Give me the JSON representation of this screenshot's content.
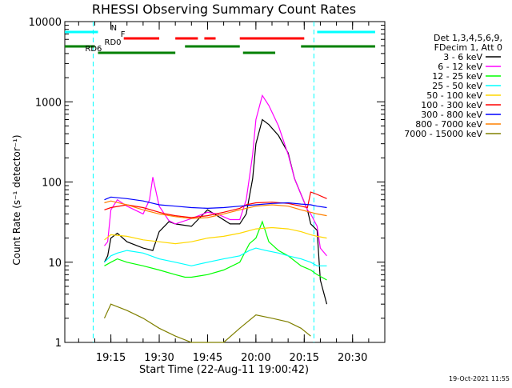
{
  "chart_data": {
    "type": "line",
    "title": "RHESSI Observing Summary Count Rates",
    "xlabel": "Start Time (22-Aug-11 19:00:42)",
    "ylabel": "Count Rate (s⁻¹ detector⁻¹)",
    "yscale": "log",
    "ylim": [
      1,
      10000
    ],
    "xlim": [
      "19:00:42",
      "20:40:00"
    ],
    "x_ticks": [
      "19:15",
      "19:30",
      "19:45",
      "20:00",
      "20:15",
      "20:30"
    ],
    "y_ticks": [
      "1",
      "10",
      "100",
      "1000",
      "10000"
    ],
    "grid": false,
    "legend_position": "right",
    "legend_header": [
      "Det 1,3,4,5,6,9,",
      "FDecim 1, Att 0"
    ],
    "timestamp": "19-Oct-2021 11:55",
    "flags": [
      {
        "label": "N",
        "color": "#00ffff",
        "intervals": [
          [
            "19:00:42",
            "19:11:00"
          ],
          [
            "20:19:00",
            "20:37:00"
          ]
        ]
      },
      {
        "label": "F",
        "color": "#ff0000",
        "intervals": [
          [
            "19:19:00",
            "19:30:00"
          ],
          [
            "19:35:00",
            "19:42:00"
          ],
          [
            "19:44:00",
            "19:47:30"
          ],
          [
            "19:55:00",
            "20:15:00"
          ]
        ]
      },
      {
        "label": "RD0",
        "color": "#008000",
        "intervals": [
          [
            "19:00:42",
            "19:10:00"
          ],
          [
            "19:38:00",
            "19:55:00"
          ],
          [
            "20:14:00",
            "20:37:00"
          ]
        ]
      },
      {
        "label": "RD6",
        "color": "#008000",
        "intervals": [
          [
            "19:11:00",
            "19:35:00"
          ],
          [
            "19:56:00",
            "20:06:00"
          ]
        ]
      }
    ],
    "night_boundaries": [
      "19:09:30",
      "20:18:00"
    ],
    "series": [
      {
        "name": "3 - 6 keV",
        "color": "#000000",
        "x": [
          "19:13",
          "19:14",
          "19:15",
          "19:17",
          "19:20",
          "19:25",
          "19:28",
          "19:30",
          "19:33",
          "19:35",
          "19:40",
          "19:45",
          "19:48",
          "19:52",
          "19:55",
          "19:57",
          "19:59",
          "20:00",
          "20:02",
          "20:04",
          "20:07",
          "20:10",
          "20:12",
          "20:14",
          "20:16",
          "20:17",
          "20:19",
          "20:20",
          "20:22"
        ],
        "y": [
          10,
          12,
          20,
          23,
          18,
          15,
          14,
          24,
          32,
          30,
          28,
          45,
          38,
          30,
          30,
          40,
          110,
          300,
          600,
          520,
          380,
          230,
          110,
          70,
          45,
          30,
          25,
          6,
          3
        ]
      },
      {
        "name": "6 - 12 keV",
        "color": "#ff00ff",
        "x": [
          "19:13",
          "19:14",
          "19:15",
          "19:17",
          "19:20",
          "19:25",
          "19:27",
          "19:28",
          "19:30",
          "19:33",
          "19:35",
          "19:40",
          "19:45",
          "19:48",
          "19:52",
          "19:55",
          "19:57",
          "19:59",
          "20:00",
          "20:02",
          "20:04",
          "20:07",
          "20:10",
          "20:12",
          "20:14",
          "20:16",
          "20:17",
          "20:19",
          "20:20",
          "20:22"
        ],
        "y": [
          16,
          18,
          45,
          60,
          50,
          40,
          60,
          115,
          50,
          33,
          30,
          35,
          42,
          40,
          34,
          34,
          60,
          220,
          600,
          1200,
          900,
          500,
          220,
          110,
          70,
          45,
          40,
          28,
          15,
          12
        ]
      },
      {
        "name": "12 - 25 keV",
        "color": "#00ff00",
        "x": [
          "19:13",
          "19:15",
          "19:17",
          "19:20",
          "19:25",
          "19:30",
          "19:35",
          "19:38",
          "19:40",
          "19:45",
          "19:50",
          "19:55",
          "19:58",
          "20:00",
          "20:02",
          "20:04",
          "20:07",
          "20:10",
          "20:14",
          "20:17",
          "20:19",
          "20:22"
        ],
        "y": [
          9,
          10,
          11,
          10,
          9,
          8,
          7,
          6.5,
          6.5,
          7,
          8,
          10,
          17,
          20,
          32,
          18,
          14,
          12,
          9,
          8,
          7,
          6
        ]
      },
      {
        "name": "25 - 50 keV",
        "color": "#00ffff",
        "x": [
          "19:13",
          "19:15",
          "19:17",
          "19:20",
          "19:25",
          "19:30",
          "19:35",
          "19:40",
          "19:45",
          "19:50",
          "19:55",
          "19:58",
          "20:00",
          "20:03",
          "20:07",
          "20:10",
          "20:14",
          "20:17",
          "20:19",
          "20:22"
        ],
        "y": [
          10,
          12,
          13,
          14,
          13,
          11,
          10,
          9,
          10,
          11,
          12,
          14,
          15,
          14,
          13,
          12,
          11,
          10,
          9,
          9
        ]
      },
      {
        "name": "50 - 100 keV",
        "color": "#ffd700",
        "x": [
          "19:13",
          "19:15",
          "19:20",
          "19:25",
          "19:30",
          "19:35",
          "19:40",
          "19:45",
          "19:50",
          "19:55",
          "20:00",
          "20:05",
          "20:10",
          "20:14",
          "20:17",
          "20:19",
          "20:22"
        ],
        "y": [
          19,
          22,
          21,
          19,
          18,
          17,
          18,
          20,
          21,
          23,
          26,
          27,
          26,
          24,
          22,
          21,
          20
        ]
      },
      {
        "name": "100 - 300 keV",
        "color": "#ff0000",
        "x": [
          "19:13",
          "19:15",
          "19:20",
          "19:25",
          "19:30",
          "19:32",
          "19:35",
          "19:40",
          "19:45",
          "19:50",
          "19:55",
          "19:57",
          "20:00",
          "20:05",
          "20:10",
          "20:14",
          "20:16",
          "20:17",
          "20:19",
          "20:22"
        ],
        "y": [
          45,
          48,
          52,
          48,
          42,
          40,
          38,
          36,
          38,
          42,
          47,
          52,
          55,
          56,
          54,
          50,
          48,
          75,
          70,
          62
        ]
      },
      {
        "name": "300 - 800 keV",
        "color": "#0000ff",
        "x": [
          "19:13",
          "19:15",
          "19:20",
          "19:25",
          "19:30",
          "19:35",
          "19:40",
          "19:45",
          "19:50",
          "19:55",
          "20:00",
          "20:05",
          "20:10",
          "20:14",
          "20:17",
          "20:19",
          "20:22"
        ],
        "y": [
          60,
          65,
          62,
          58,
          52,
          50,
          48,
          47,
          48,
          50,
          52,
          54,
          55,
          53,
          52,
          50,
          48
        ]
      },
      {
        "name": "800 - 7000 keV",
        "color": "#ff8000",
        "x": [
          "19:13",
          "19:15",
          "19:20",
          "19:25",
          "19:30",
          "19:35",
          "19:40",
          "19:45",
          "19:50",
          "19:55",
          "20:00",
          "20:05",
          "20:10",
          "20:14",
          "20:17",
          "20:19",
          "20:22"
        ],
        "y": [
          55,
          58,
          52,
          45,
          40,
          37,
          35,
          36,
          40,
          45,
          50,
          52,
          50,
          45,
          42,
          40,
          38
        ]
      },
      {
        "name": "7000 - 15000 keV",
        "color": "#808000",
        "x": [
          "19:13",
          "19:15",
          "19:20",
          "19:25",
          "19:30",
          "19:35",
          "19:40",
          "19:45",
          "19:50",
          "19:55",
          "20:00",
          "20:05",
          "20:10",
          "20:14",
          "20:17"
        ],
        "y": [
          2,
          3,
          2.5,
          2,
          1.5,
          1.2,
          1,
          1,
          1,
          1.5,
          2.2,
          2,
          1.8,
          1.5,
          1.2
        ]
      }
    ],
    "series_spans": [
      [
        "19:13",
        "20:22"
      ],
      [
        "19:13",
        "20:22"
      ],
      [
        "19:13",
        "20:22"
      ],
      [
        "19:13",
        "20:22"
      ],
      [
        "19:13",
        "20:22"
      ],
      [
        "19:13",
        "20:22"
      ],
      [
        "19:13",
        "20:22"
      ],
      [
        "19:13",
        "20:22"
      ],
      [
        "19:13",
        "20:17"
      ]
    ]
  }
}
